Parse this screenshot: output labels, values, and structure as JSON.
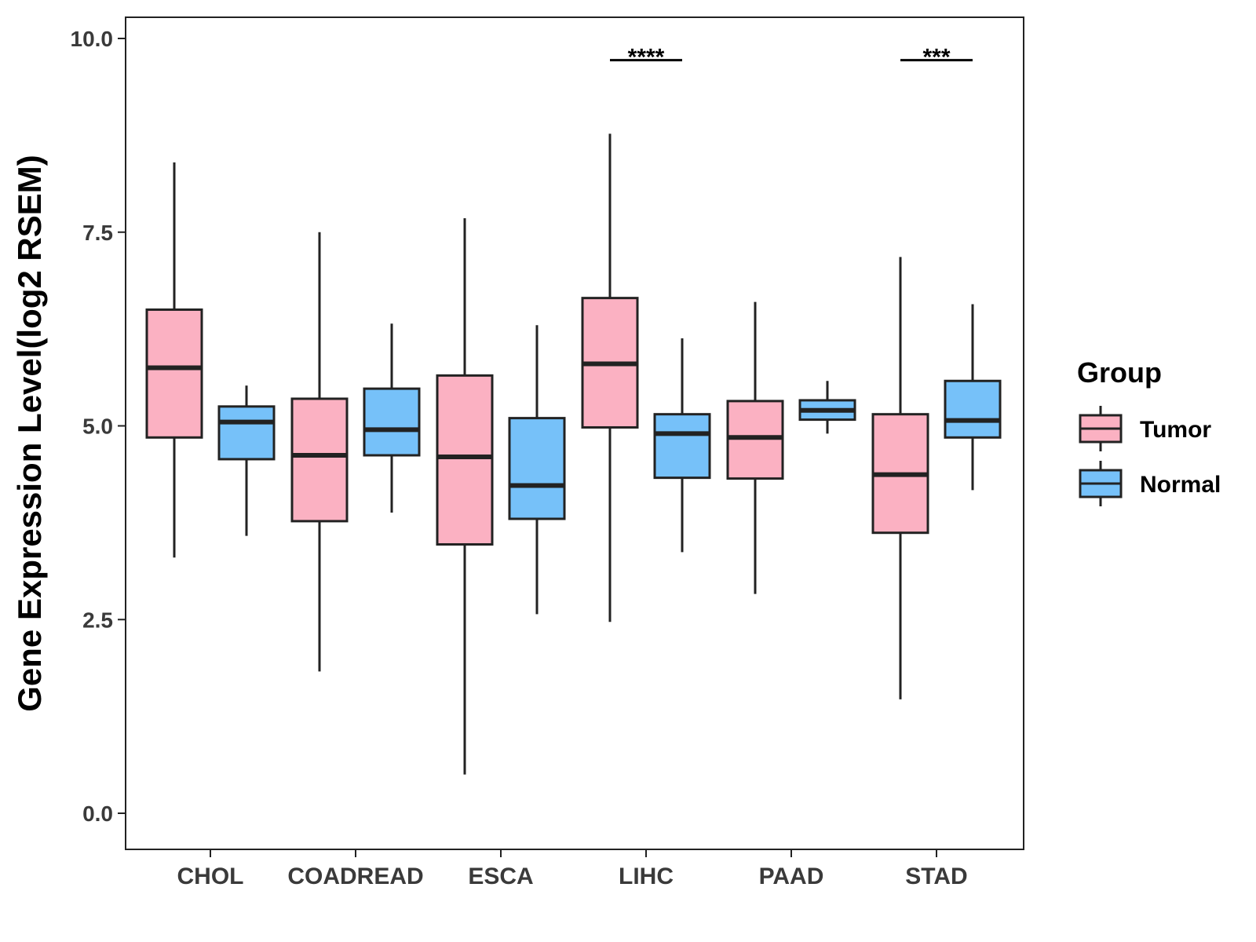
{
  "chart_data": {
    "type": "boxplot",
    "title": "",
    "xlabel": "",
    "ylabel": "Gene Expression Level(log2 RSEM)",
    "ylim": [
      -0.48,
      10.27
    ],
    "yticks": [
      0.0,
      2.5,
      5.0,
      7.5,
      10.0
    ],
    "ytick_labels": [
      "0.0",
      "2.5",
      "5.0",
      "7.5",
      "10.0"
    ],
    "grid": false,
    "legend": {
      "title": "Group",
      "position": "right"
    },
    "categories": [
      "CHOL",
      "COADREAD",
      "ESCA",
      "LIHC",
      "PAAD",
      "STAD"
    ],
    "series": [
      {
        "name": "Tumor",
        "color": "#FBB1C2",
        "boxes": [
          {
            "min": 3.3,
            "q1": 4.85,
            "median": 5.75,
            "q3": 6.5,
            "max": 8.4
          },
          {
            "min": 1.83,
            "q1": 3.77,
            "median": 4.62,
            "q3": 5.35,
            "max": 7.5
          },
          {
            "min": 0.5,
            "q1": 3.47,
            "median": 4.6,
            "q3": 5.65,
            "max": 7.68
          },
          {
            "min": 2.47,
            "q1": 4.98,
            "median": 5.8,
            "q3": 6.65,
            "max": 8.77
          },
          {
            "min": 2.83,
            "q1": 4.32,
            "median": 4.85,
            "q3": 5.32,
            "max": 6.6
          },
          {
            "min": 1.47,
            "q1": 3.62,
            "median": 4.37,
            "q3": 5.15,
            "max": 7.18
          }
        ]
      },
      {
        "name": "Normal",
        "color": "#76C1F9",
        "boxes": [
          {
            "min": 3.58,
            "q1": 4.57,
            "median": 5.05,
            "q3": 5.25,
            "max": 5.52
          },
          {
            "min": 3.88,
            "q1": 4.62,
            "median": 4.95,
            "q3": 5.48,
            "max": 6.32
          },
          {
            "min": 2.57,
            "q1": 3.8,
            "median": 4.23,
            "q3": 5.1,
            "max": 6.3
          },
          {
            "min": 3.37,
            "q1": 4.33,
            "median": 4.9,
            "q3": 5.15,
            "max": 6.13
          },
          {
            "min": 4.9,
            "q1": 5.08,
            "median": 5.2,
            "q3": 5.33,
            "max": 5.58
          },
          {
            "min": 4.17,
            "q1": 4.85,
            "median": 5.07,
            "q3": 5.58,
            "max": 6.57
          }
        ]
      }
    ],
    "significance": [
      {
        "category": "LIHC",
        "label": "****",
        "y": 9.72
      },
      {
        "category": "STAD",
        "label": "***",
        "y": 9.72
      }
    ]
  }
}
